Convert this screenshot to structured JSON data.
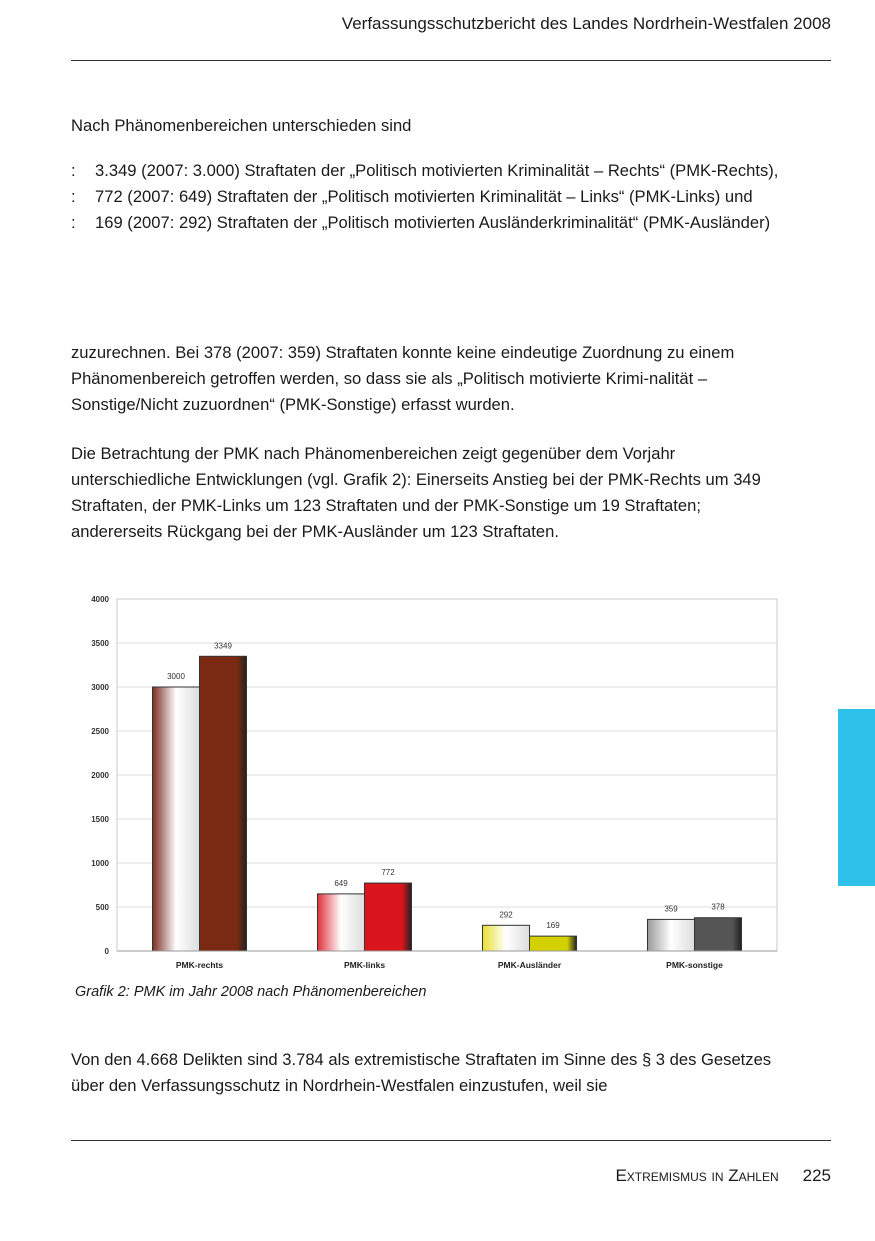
{
  "header": {
    "title": "Verfassungsschutzbericht des Landes Nordrhein-Westfalen 2008"
  },
  "body": {
    "intro": "Nach Phänomenbereichen unterschieden sind",
    "bullets": [
      {
        "marker": ":",
        "text": "3.349 (2007: 3.000) Straftaten der „Politisch motivierten Kriminalität – Rechts“ (PMK-Rechts),"
      },
      {
        "marker": ":",
        "text": "772 (2007: 649) Straftaten der „Politisch motivierten Kriminalität – Links“ (PMK-Links) und"
      },
      {
        "marker": ":",
        "text": "169 (2007: 292) Straftaten der „Politisch motivierten Ausländerkriminalität“ (PMK-Ausländer)"
      }
    ],
    "para1": "zuzurechnen. Bei 378 (2007: 359) Straftaten konnte keine eindeutige Zuordnung zu einem Phänomenbereich getroffen werden, so dass sie als „Politisch motivierte Krimi-nalität – Sonstige/Nicht zuzuordnen“ (PMK-Sonstige) erfasst wurden.",
    "para2": "Die Betrachtung der PMK nach Phänomenbereichen zeigt gegenüber dem Vorjahr unterschiedliche Entwicklungen (vgl. Grafik 2): Einerseits Anstieg bei der PMK-Rechts um 349 Straftaten, der PMK-Links um 123 Straftaten und der PMK-Sonstige um 19 Straftaten; andererseits Rückgang bei der PMK-Ausländer um 123 Straftaten.",
    "caption": "Grafik 2: PMK im Jahr 2008 nach Phänomenbereichen",
    "para3": "Von den 4.668 Delikten sind 3.784 als extremistische Straftaten im Sinne des § 3 des Gesetzes über den Verfassungsschutz in Nordrhein-Westfalen einzustufen, weil sie"
  },
  "chart_data": {
    "type": "bar",
    "categories": [
      "PMK-rechts",
      "PMK-links",
      "PMK-Ausländer",
      "PMK-sonstige"
    ],
    "series": [
      {
        "values": [
          3000,
          649,
          292,
          359
        ]
      },
      {
        "values": [
          3349,
          772,
          169,
          378
        ]
      }
    ],
    "ylim": [
      0,
      4000
    ],
    "yticks": [
      0,
      500,
      1000,
      1500,
      2000,
      2500,
      3000,
      3500,
      4000
    ],
    "grid": true,
    "colors": {
      "light": [
        "#7a2e22",
        "#e0323a",
        "#e8e030",
        "#9a9a9a"
      ],
      "solid": [
        "#7a2a12",
        "#d8141c",
        "#d4d000",
        "#555555"
      ]
    }
  },
  "footer": {
    "section": "Extremismus in Zahlen",
    "page": "225"
  },
  "accent": "#2ec1ea"
}
